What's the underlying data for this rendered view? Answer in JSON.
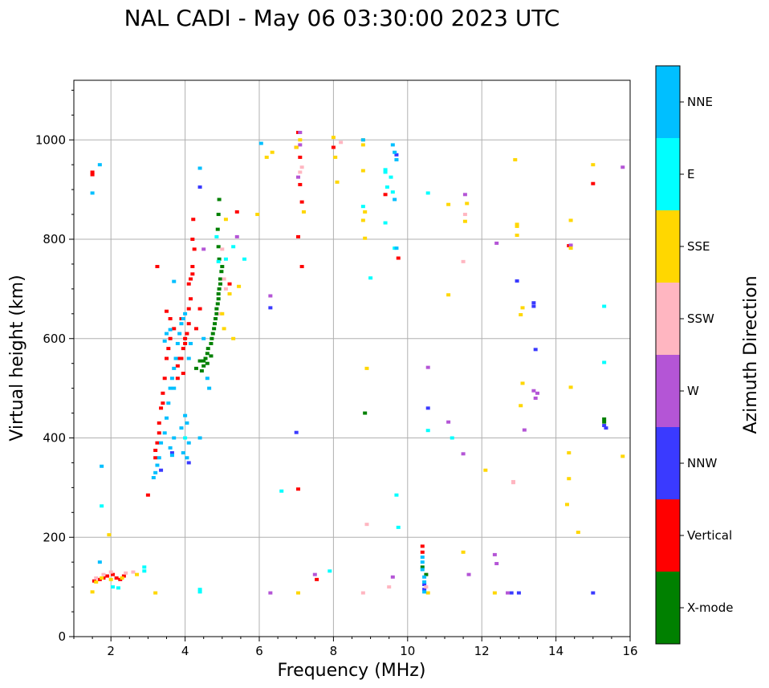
{
  "chart_data": {
    "type": "scatter",
    "title": "NAL CADI - May 06 03:30:00 2023 UTC",
    "xlabel": "Frequency (MHz)",
    "ylabel": "Virtual height (km)",
    "xlim": [
      1,
      16
    ],
    "ylim": [
      0,
      1120
    ],
    "xticks": [
      2,
      4,
      6,
      8,
      10,
      12,
      14,
      16
    ],
    "yticks": [
      0,
      200,
      400,
      600,
      800,
      1000
    ],
    "grid": true,
    "colorbar": {
      "label": "Azimuth Direction",
      "categories": [
        "X-mode",
        "Vertical",
        "NNW",
        "W",
        "SSW",
        "SSE",
        "E",
        "NNE"
      ],
      "colors": [
        "#008000",
        "#ff0000",
        "#3a3aff",
        "#b455d6",
        "#ffb6c1",
        "#ffd700",
        "#00ffff",
        "#00bfff"
      ]
    },
    "series": [
      {
        "name": "X-mode",
        "points": [
          [
            4.3,
            540
          ],
          [
            4.45,
            535
          ],
          [
            4.5,
            545
          ],
          [
            4.5,
            555
          ],
          [
            4.55,
            560
          ],
          [
            4.6,
            570
          ],
          [
            4.62,
            580
          ],
          [
            4.7,
            590
          ],
          [
            4.72,
            600
          ],
          [
            4.75,
            610
          ],
          [
            4.78,
            620
          ],
          [
            4.8,
            630
          ],
          [
            4.82,
            640
          ],
          [
            4.85,
            650
          ],
          [
            4.85,
            660
          ],
          [
            4.88,
            670
          ],
          [
            4.9,
            680
          ],
          [
            4.9,
            690
          ],
          [
            4.92,
            700
          ],
          [
            4.95,
            710
          ],
          [
            4.95,
            720
          ],
          [
            4.98,
            735
          ],
          [
            5.0,
            745
          ],
          [
            4.92,
            760
          ],
          [
            4.9,
            785
          ],
          [
            4.88,
            820
          ],
          [
            4.9,
            850
          ],
          [
            4.92,
            880
          ],
          [
            4.4,
            555
          ],
          [
            4.6,
            550
          ],
          [
            4.7,
            565
          ],
          [
            8.85,
            450
          ],
          [
            15.3,
            432
          ],
          [
            15.3,
            438
          ],
          [
            10.5,
            125
          ],
          [
            10.4,
            140
          ]
        ]
      },
      {
        "name": "Vertical",
        "points": [
          [
            1.5,
            935
          ],
          [
            1.5,
            930
          ],
          [
            1.55,
            112
          ],
          [
            1.7,
            115
          ],
          [
            1.8,
            118
          ],
          [
            1.9,
            122
          ],
          [
            2.05,
            125
          ],
          [
            2.15,
            118
          ],
          [
            2.25,
            115
          ],
          [
            2.35,
            122
          ],
          [
            3.0,
            285
          ],
          [
            3.2,
            360
          ],
          [
            3.2,
            375
          ],
          [
            3.25,
            390
          ],
          [
            3.3,
            430
          ],
          [
            3.35,
            460
          ],
          [
            3.4,
            490
          ],
          [
            3.45,
            520
          ],
          [
            3.5,
            560
          ],
          [
            3.55,
            580
          ],
          [
            3.6,
            600
          ],
          [
            3.7,
            620
          ],
          [
            3.8,
            520
          ],
          [
            3.8,
            545
          ],
          [
            3.9,
            560
          ],
          [
            3.95,
            580
          ],
          [
            4.0,
            590
          ],
          [
            4.0,
            600
          ],
          [
            4.05,
            610
          ],
          [
            4.1,
            630
          ],
          [
            4.1,
            660
          ],
          [
            4.15,
            680
          ],
          [
            4.1,
            710
          ],
          [
            4.15,
            720
          ],
          [
            4.2,
            730
          ],
          [
            4.2,
            745
          ],
          [
            4.25,
            780
          ],
          [
            4.2,
            800
          ],
          [
            4.22,
            840
          ],
          [
            4.3,
            620
          ],
          [
            4.4,
            660
          ],
          [
            3.9,
            640
          ],
          [
            3.85,
            560
          ],
          [
            3.6,
            640
          ],
          [
            3.5,
            655
          ],
          [
            3.3,
            410
          ],
          [
            3.4,
            470
          ],
          [
            3.95,
            530
          ],
          [
            7.05,
            1015
          ],
          [
            7.0,
            985
          ],
          [
            7.1,
            965
          ],
          [
            7.1,
            910
          ],
          [
            7.15,
            875
          ],
          [
            7.05,
            805
          ],
          [
            7.15,
            745
          ],
          [
            7.05,
            297
          ],
          [
            7.55,
            115
          ],
          [
            8.0,
            985
          ],
          [
            9.4,
            890
          ],
          [
            9.75,
            762
          ],
          [
            10.4,
            182
          ],
          [
            10.4,
            170
          ],
          [
            15.0,
            912
          ],
          [
            14.35,
            787
          ],
          [
            5.2,
            710
          ],
          [
            5.4,
            855
          ],
          [
            3.25,
            745
          ]
        ]
      },
      {
        "name": "NNW",
        "points": [
          [
            3.35,
            335
          ],
          [
            4.1,
            350
          ],
          [
            4.4,
            905
          ],
          [
            7.0,
            411
          ],
          [
            9.7,
            970
          ],
          [
            10.55,
            460
          ],
          [
            12.95,
            716
          ],
          [
            13.4,
            672
          ],
          [
            13.4,
            665
          ],
          [
            13.45,
            578
          ],
          [
            12.8,
            88
          ],
          [
            13.0,
            88
          ],
          [
            15.0,
            88
          ],
          [
            15.3,
            425
          ],
          [
            15.35,
            420
          ],
          [
            6.3,
            662
          ],
          [
            10.45,
            95
          ],
          [
            10.45,
            105
          ],
          [
            3.65,
            370
          ]
        ]
      },
      {
        "name": "W",
        "points": [
          [
            6.3,
            686
          ],
          [
            6.3,
            88
          ],
          [
            7.1,
            1015
          ],
          [
            7.1,
            990
          ],
          [
            7.05,
            925
          ],
          [
            7.5,
            125
          ],
          [
            10.55,
            542
          ],
          [
            11.1,
            432
          ],
          [
            11.5,
            368
          ],
          [
            11.55,
            890
          ],
          [
            11.65,
            125
          ],
          [
            12.4,
            792
          ],
          [
            12.35,
            165
          ],
          [
            12.4,
            147
          ],
          [
            12.7,
            88
          ],
          [
            13.15,
            416
          ],
          [
            13.4,
            495
          ],
          [
            13.45,
            480
          ],
          [
            13.5,
            490
          ],
          [
            14.4,
            788
          ],
          [
            15.8,
            945
          ],
          [
            9.6,
            120
          ],
          [
            5.4,
            805
          ],
          [
            4.5,
            780
          ]
        ]
      },
      {
        "name": "SSW",
        "points": [
          [
            7.1,
            935
          ],
          [
            7.15,
            945
          ],
          [
            8.2,
            995
          ],
          [
            8.8,
            88
          ],
          [
            8.9,
            226
          ],
          [
            9.5,
            100
          ],
          [
            11.5,
            755
          ],
          [
            11.55,
            850
          ],
          [
            12.85,
            310
          ],
          [
            12.85,
            312
          ],
          [
            1.6,
            118
          ],
          [
            1.8,
            125
          ],
          [
            2.0,
            130
          ],
          [
            2.4,
            128
          ],
          [
            2.6,
            130
          ],
          [
            5.0,
            780
          ],
          [
            5.05,
            720
          ],
          [
            5.1,
            700
          ],
          [
            4.95,
            650
          ],
          [
            10.5,
            100
          ]
        ]
      },
      {
        "name": "SSE",
        "points": [
          [
            1.5,
            90
          ],
          [
            1.6,
            110
          ],
          [
            1.75,
            118
          ],
          [
            1.95,
            205
          ],
          [
            2.0,
            115
          ],
          [
            2.3,
            118
          ],
          [
            2.7,
            125
          ],
          [
            3.2,
            88
          ],
          [
            5.1,
            840
          ],
          [
            5.0,
            650
          ],
          [
            5.05,
            620
          ],
          [
            5.2,
            690
          ],
          [
            5.3,
            600
          ],
          [
            5.45,
            705
          ],
          [
            5.95,
            850
          ],
          [
            6.2,
            965
          ],
          [
            6.35,
            975
          ],
          [
            7.0,
            985
          ],
          [
            7.1,
            1000
          ],
          [
            7.2,
            855
          ],
          [
            7.05,
            88
          ],
          [
            8.0,
            1005
          ],
          [
            8.05,
            965
          ],
          [
            8.1,
            915
          ],
          [
            8.8,
            1000
          ],
          [
            8.8,
            990
          ],
          [
            8.8,
            938
          ],
          [
            8.85,
            855
          ],
          [
            8.8,
            838
          ],
          [
            8.85,
            802
          ],
          [
            8.9,
            540
          ],
          [
            10.55,
            88
          ],
          [
            11.1,
            870
          ],
          [
            11.1,
            688
          ],
          [
            11.5,
            170
          ],
          [
            11.55,
            836
          ],
          [
            11.6,
            872
          ],
          [
            12.1,
            335
          ],
          [
            12.35,
            88
          ],
          [
            12.9,
            960
          ],
          [
            12.95,
            830
          ],
          [
            12.95,
            826
          ],
          [
            12.95,
            808
          ],
          [
            13.1,
            662
          ],
          [
            13.05,
            648
          ],
          [
            13.1,
            510
          ],
          [
            13.05,
            465
          ],
          [
            14.4,
            838
          ],
          [
            14.4,
            502
          ],
          [
            14.35,
            370
          ],
          [
            14.35,
            318
          ],
          [
            14.3,
            266
          ],
          [
            14.6,
            210
          ],
          [
            14.4,
            782
          ],
          [
            15.0,
            950
          ],
          [
            15.8,
            363
          ]
        ]
      },
      {
        "name": "E",
        "points": [
          [
            1.75,
            263
          ],
          [
            2.9,
            132
          ],
          [
            2.9,
            140
          ],
          [
            2.05,
            100
          ],
          [
            2.2,
            98
          ],
          [
            4.0,
            400
          ],
          [
            4.4,
            95
          ],
          [
            4.4,
            90
          ],
          [
            6.6,
            293
          ],
          [
            7.9,
            132
          ],
          [
            8.8,
            866
          ],
          [
            9.0,
            722
          ],
          [
            9.4,
            833
          ],
          [
            9.4,
            940
          ],
          [
            9.4,
            935
          ],
          [
            9.45,
            905
          ],
          [
            9.55,
            925
          ],
          [
            9.6,
            895
          ],
          [
            9.65,
            782
          ],
          [
            9.7,
            285
          ],
          [
            9.75,
            220
          ],
          [
            10.55,
            415
          ],
          [
            10.55,
            893
          ],
          [
            15.3,
            665
          ],
          [
            15.3,
            552
          ],
          [
            11.2,
            400
          ],
          [
            5.1,
            760
          ],
          [
            5.3,
            785
          ],
          [
            5.6,
            760
          ],
          [
            4.85,
            805
          ],
          [
            4.9,
            755
          ]
        ]
      },
      {
        "name": "NNE",
        "points": [
          [
            1.5,
            893
          ],
          [
            1.7,
            950
          ],
          [
            1.75,
            343
          ],
          [
            1.7,
            150
          ],
          [
            3.15,
            320
          ],
          [
            3.2,
            330
          ],
          [
            3.25,
            345
          ],
          [
            3.3,
            360
          ],
          [
            3.35,
            390
          ],
          [
            3.45,
            410
          ],
          [
            3.5,
            440
          ],
          [
            3.55,
            470
          ],
          [
            3.6,
            500
          ],
          [
            3.65,
            520
          ],
          [
            3.7,
            540
          ],
          [
            3.75,
            560
          ],
          [
            3.8,
            590
          ],
          [
            3.85,
            610
          ],
          [
            3.9,
            630
          ],
          [
            3.95,
            640
          ],
          [
            4.0,
            650
          ],
          [
            4.05,
            430
          ],
          [
            4.0,
            445
          ],
          [
            4.1,
            390
          ],
          [
            3.9,
            420
          ],
          [
            3.7,
            400
          ],
          [
            3.6,
            380
          ],
          [
            3.65,
            365
          ],
          [
            3.7,
            715
          ],
          [
            3.6,
            618
          ],
          [
            3.45,
            595
          ],
          [
            3.5,
            610
          ],
          [
            4.4,
            400
          ],
          [
            4.4,
            943
          ],
          [
            4.5,
            600
          ],
          [
            4.6,
            520
          ],
          [
            4.65,
            500
          ],
          [
            6.05,
            993
          ],
          [
            8.8,
            1000
          ],
          [
            9.6,
            990
          ],
          [
            9.65,
            975
          ],
          [
            9.7,
            960
          ],
          [
            9.65,
            880
          ],
          [
            9.7,
            782
          ],
          [
            10.45,
            90
          ],
          [
            10.45,
            110
          ],
          [
            10.45,
            120
          ],
          [
            10.4,
            135
          ],
          [
            10.4,
            150
          ],
          [
            10.4,
            160
          ],
          [
            3.95,
            370
          ],
          [
            4.05,
            360
          ],
          [
            4.1,
            560
          ],
          [
            4.15,
            590
          ],
          [
            3.7,
            500
          ]
        ]
      }
    ]
  }
}
